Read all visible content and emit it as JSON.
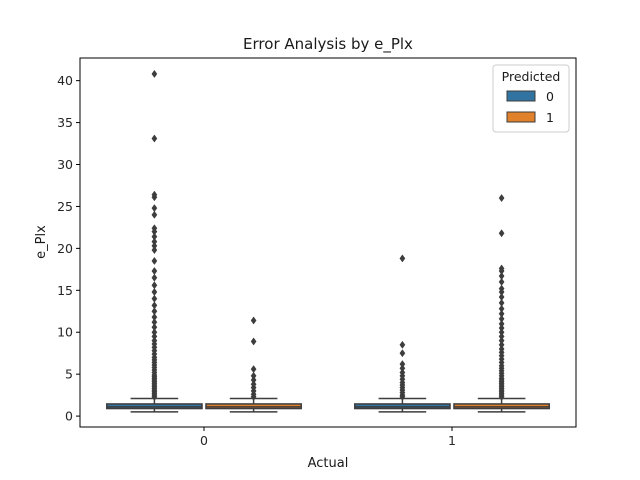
{
  "chart_data": {
    "type": "box",
    "title": "Error Analysis by e_Plx",
    "xlabel": "Actual",
    "ylabel": "e_Plx",
    "categories": [
      "0",
      "1"
    ],
    "ylim": [
      -1.3,
      42.7
    ],
    "yticks": [
      0,
      5,
      10,
      15,
      20,
      25,
      30,
      35,
      40
    ],
    "grid": false,
    "legend": {
      "title": "Predicted",
      "placement": "top-right",
      "entries": [
        {
          "label": "0",
          "color": "#3274a1"
        },
        {
          "label": "1",
          "color": "#e1812c"
        }
      ]
    },
    "series": [
      {
        "name": "0",
        "color": "#3274a1",
        "boxes": [
          {
            "category": "0",
            "whisker_low": 0.5,
            "q1": 0.9,
            "median": 1.1,
            "q3": 1.45,
            "whisker_high": 2.1,
            "outliers": [
              2.3,
              2.5,
              2.7,
              2.9,
              3.1,
              3.3,
              3.5,
              3.7,
              3.9,
              4.1,
              4.3,
              4.5,
              4.7,
              4.9,
              5.2,
              5.5,
              5.8,
              6.1,
              6.4,
              6.7,
              7.0,
              7.4,
              7.8,
              8.2,
              8.6,
              9.0,
              9.5,
              10.0,
              10.6,
              11.2,
              11.8,
              12.5,
              13.2,
              14.0,
              14.8,
              15.6,
              16.5,
              17.3,
              18.5,
              19.8,
              20.3,
              20.8,
              21.4,
              22.0,
              22.4,
              24.0,
              24.8,
              26.1,
              26.4,
              33.1,
              40.8
            ]
          },
          {
            "category": "1",
            "whisker_low": 0.5,
            "q1": 0.9,
            "median": 1.1,
            "q3": 1.45,
            "whisker_high": 2.1,
            "outliers": [
              2.3,
              2.5,
              2.8,
              3.1,
              3.4,
              3.7,
              4.0,
              4.4,
              4.8,
              5.2,
              5.7,
              6.2,
              7.5,
              8.5,
              18.8
            ]
          }
        ]
      },
      {
        "name": "1",
        "color": "#e1812c",
        "boxes": [
          {
            "category": "0",
            "whisker_low": 0.5,
            "q1": 0.9,
            "median": 1.1,
            "q3": 1.45,
            "whisker_high": 2.1,
            "outliers": [
              2.3,
              2.6,
              3.0,
              3.4,
              3.8,
              4.3,
              4.8,
              5.6,
              8.9,
              11.4
            ]
          },
          {
            "category": "1",
            "whisker_low": 0.5,
            "q1": 0.9,
            "median": 1.1,
            "q3": 1.45,
            "whisker_high": 2.1,
            "outliers": [
              2.3,
              2.5,
              2.7,
              2.9,
              3.1,
              3.3,
              3.5,
              3.7,
              3.9,
              4.1,
              4.3,
              4.5,
              4.8,
              5.1,
              5.4,
              5.7,
              6.0,
              6.4,
              6.8,
              7.2,
              7.6,
              8.0,
              8.5,
              9.0,
              9.5,
              10.0,
              10.5,
              11.0,
              11.6,
              12.2,
              12.8,
              13.5,
              14.2,
              14.8,
              15.2,
              16.0,
              16.7,
              17.3,
              17.6,
              21.8,
              26.0
            ]
          }
        ]
      }
    ]
  }
}
